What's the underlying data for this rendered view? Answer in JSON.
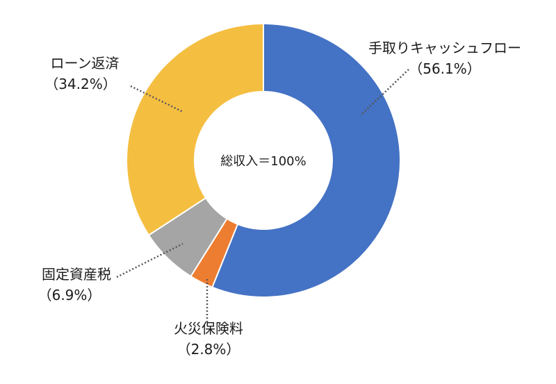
{
  "chart_data": {
    "type": "pie",
    "variant": "donut",
    "center_label": "総収入＝100%",
    "slices": [
      {
        "label": "手取りキャッシュフロー",
        "percent_label": "（56.1%）",
        "value": 56.1,
        "color": "#4472C4"
      },
      {
        "label": "火災保険料",
        "percent_label": "（2.8%）",
        "value": 2.8,
        "color": "#ED7D31"
      },
      {
        "label": "固定資産税",
        "percent_label": "（6.9%）",
        "value": 6.9,
        "color": "#A5A5A5"
      },
      {
        "label": "ローン返済",
        "percent_label": "（34.2%）",
        "value": 34.2,
        "color": "#F4BE41"
      }
    ],
    "start": "12 o'clock",
    "direction": "clockwise",
    "legend": "none",
    "leader_lines": "dotted"
  }
}
